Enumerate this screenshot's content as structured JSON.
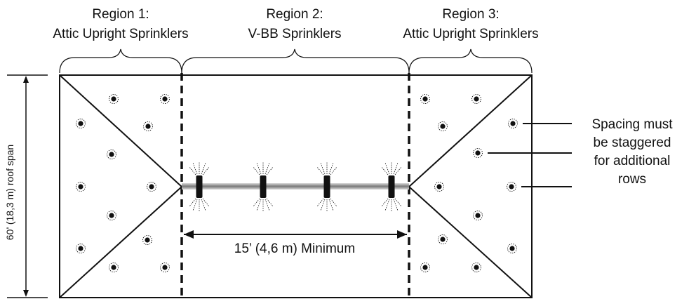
{
  "regions": [
    {
      "line1": "Region 1:",
      "line2": "Attic Upright Sprinklers"
    },
    {
      "line1": "Region 2:",
      "line2": "V-BB Sprinklers"
    },
    {
      "line1": "Region 3:",
      "line2": "Attic Upright Sprinklers"
    }
  ],
  "roof_span_label": "60’ (18,3 m) roof span",
  "minimum_label": "15’ (4,6 m) Minimum",
  "spacing_note": [
    "Spacing must",
    "be staggered",
    "for additional",
    "rows"
  ],
  "colors": {
    "line": "#111111",
    "sprinkler": "#111111",
    "pipe": "#8a8a8a"
  }
}
